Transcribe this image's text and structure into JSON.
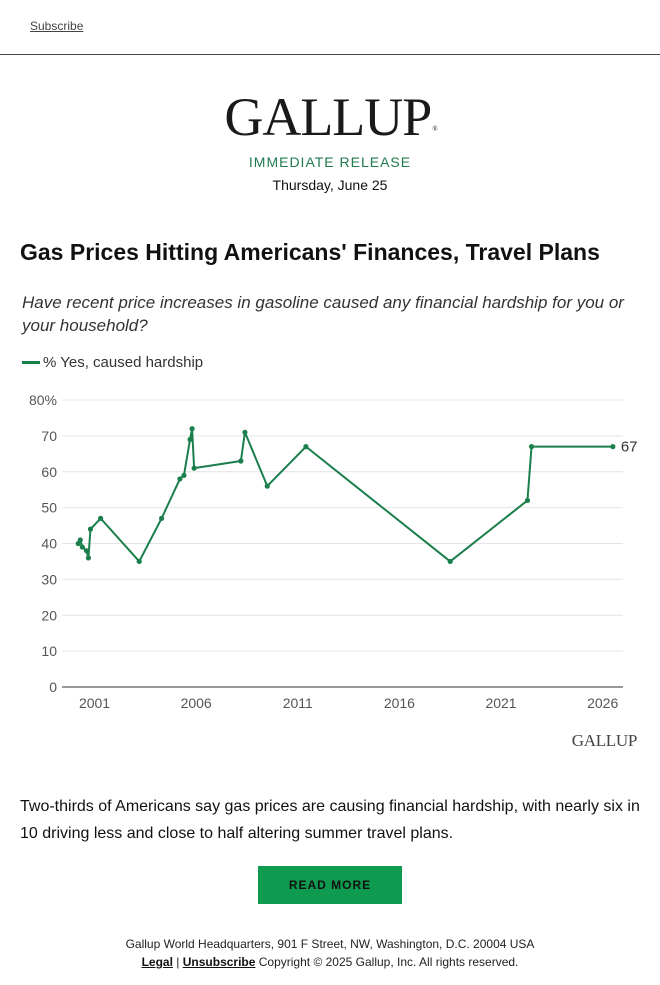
{
  "header": {
    "subscribe_label": "Subscribe"
  },
  "masthead": {
    "logo_text": "GALLUP",
    "logo_mark": "®",
    "release_label": "IMMEDIATE RELEASE",
    "date": "Thursday, June 25"
  },
  "article": {
    "headline": "Gas Prices Hitting Americans' Finances, Travel Plans",
    "question": "Have recent price increases in gasoline caused any financial hardship for you or your household?",
    "summary": "Two-thirds of Americans say gas prices are causing financial hardship, with nearly six in 10 driving less and close to half altering summer travel plans.",
    "read_more_label": "READ MORE"
  },
  "chart_data": {
    "type": "line",
    "title": "",
    "xlabel": "",
    "ylabel": "",
    "ylim": [
      0,
      80
    ],
    "xlim": [
      1999.4,
      2027
    ],
    "y_ticks": [
      0,
      10,
      20,
      30,
      40,
      50,
      60,
      70,
      80
    ],
    "y_tick_labels": [
      "0",
      "10",
      "20",
      "30",
      "40",
      "50",
      "60",
      "70",
      "80%"
    ],
    "x_ticks": [
      2001,
      2006,
      2011,
      2016,
      2021,
      2026
    ],
    "x_tick_labels": [
      "2001",
      "2006",
      "2011",
      "2016",
      "2021",
      "2026"
    ],
    "grid": true,
    "legend_position": "top-left",
    "color": "#1a7f4b",
    "series": [
      {
        "name": "% Yes, caused hardship",
        "x": [
          2000.2,
          2000.3,
          2000.4,
          2000.6,
          2000.7,
          2000.8,
          2001.3,
          2003.2,
          2004.3,
          2005.2,
          2005.4,
          2005.7,
          2005.8,
          2005.9,
          2008.2,
          2008.4,
          2009.5,
          2011.4,
          2018.5,
          2022.3,
          2022.5,
          2026.5
        ],
        "y": [
          40,
          41,
          39,
          38,
          36,
          44,
          47,
          35,
          47,
          58,
          59,
          69,
          72,
          61,
          63,
          71,
          56,
          67,
          35,
          52,
          67,
          67
        ],
        "end_label": "67"
      }
    ]
  },
  "source_logo": "GALLUP",
  "footer": {
    "address": "Gallup World Headquarters, 901 F Street, NW, Washington, D.C. 20004 USA",
    "legal_label": "Legal",
    "separator": " | ",
    "unsubscribe_label": "Unsubscribe",
    "copyright": " Copyright © 2025 Gallup, Inc. All rights reserved."
  }
}
